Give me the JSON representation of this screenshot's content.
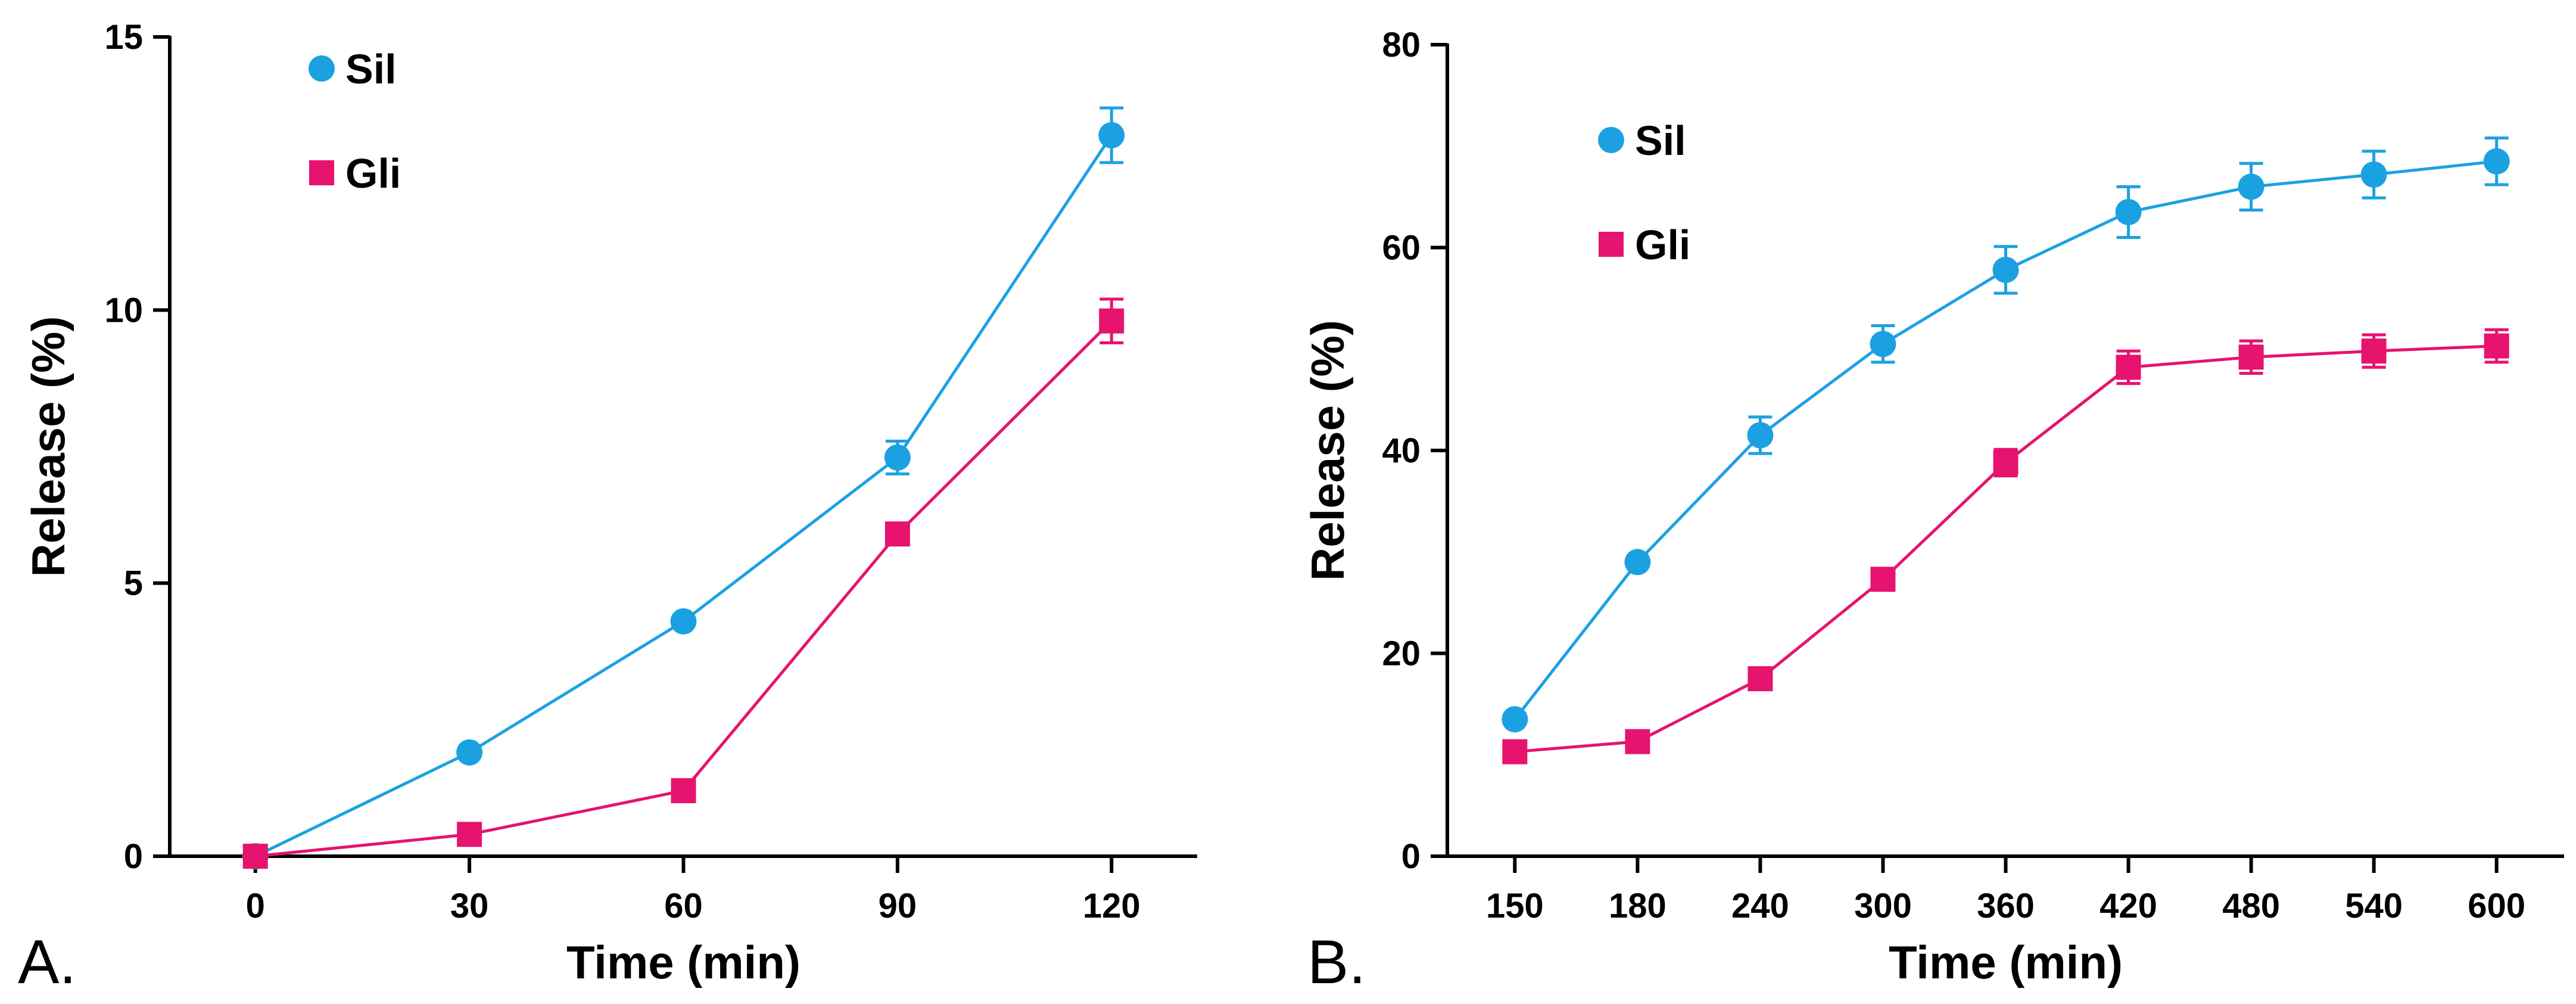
{
  "colors": {
    "sil": "#1BA1E2",
    "gli": "#E6136F",
    "axis": "#000000"
  },
  "chart_data": [
    {
      "type": "line",
      "panel_label": "A.",
      "xlabel": "Time (min)",
      "ylabel": "Release (%)",
      "x": [
        0,
        30,
        60,
        90,
        120
      ],
      "x_ticks": [
        "0",
        "30",
        "60",
        "90",
        "120"
      ],
      "xlim": [
        -12,
        132
      ],
      "ylim": [
        0,
        15
      ],
      "y_ticks": [
        0,
        5,
        10,
        15
      ],
      "y_tick_labels": [
        "0",
        "5",
        "10",
        "15"
      ],
      "legend": "top-left",
      "series": [
        {
          "name": "Sil",
          "marker": "circle",
          "color": "#1BA1E2",
          "values": [
            0,
            1.9,
            4.3,
            7.3,
            13.2
          ],
          "errors": [
            0,
            0,
            0,
            0.3,
            0.5
          ]
        },
        {
          "name": "Gli",
          "marker": "square",
          "color": "#E6136F",
          "values": [
            0,
            0.4,
            1.2,
            5.9,
            9.8
          ],
          "errors": [
            0,
            0,
            0,
            0,
            0.4
          ]
        }
      ]
    },
    {
      "type": "line",
      "panel_label": "B.",
      "xlabel": "Time (min)",
      "ylabel": "Release (%)",
      "x": [
        150,
        180,
        240,
        300,
        360,
        420,
        480,
        540,
        600
      ],
      "x_ticks": [
        "150",
        "180",
        "240",
        "300",
        "360",
        "420",
        "480",
        "540",
        "600"
      ],
      "categorical_x": true,
      "ylim": [
        0,
        80
      ],
      "y_ticks": [
        0,
        20,
        40,
        60,
        80
      ],
      "y_tick_labels": [
        "0",
        "20",
        "40",
        "60",
        "80"
      ],
      "legend": "top-left",
      "series": [
        {
          "name": "Sil",
          "marker": "circle",
          "color": "#1BA1E2",
          "values": [
            13.5,
            29,
            41.5,
            50.5,
            57.8,
            63.5,
            66,
            67.2,
            68.5
          ],
          "errors": [
            0,
            0,
            1.8,
            1.8,
            2.3,
            2.5,
            2.3,
            2.3,
            2.3
          ]
        },
        {
          "name": "Gli",
          "marker": "square",
          "color": "#E6136F",
          "values": [
            10.3,
            11.3,
            17.5,
            27.3,
            38.8,
            48.2,
            49.2,
            49.8,
            50.3
          ],
          "errors": [
            0,
            0,
            0,
            0,
            1.3,
            1.6,
            1.6,
            1.6,
            1.6
          ]
        }
      ]
    }
  ]
}
